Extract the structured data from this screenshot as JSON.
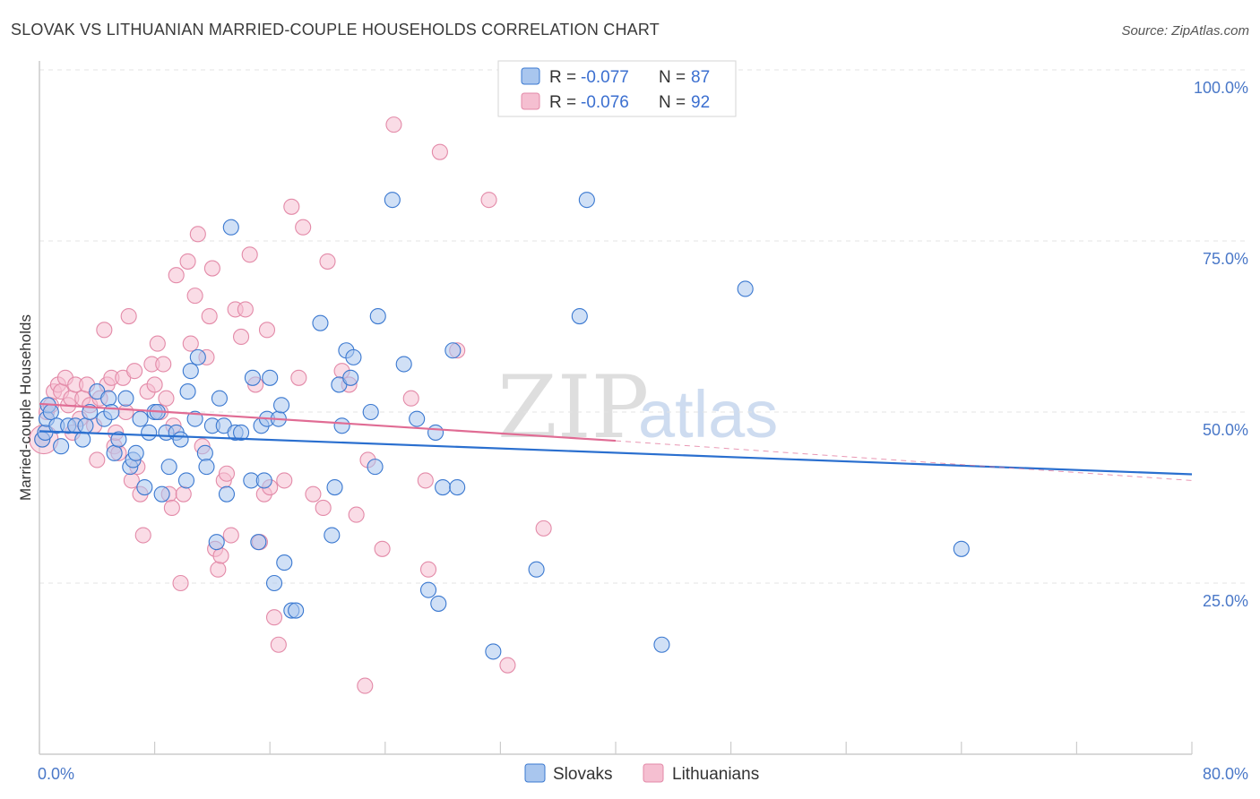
{
  "chart_data": {
    "type": "scatter",
    "title": "SLOVAK VS LITHUANIAN MARRIED-COUPLE HOUSEHOLDS CORRELATION CHART",
    "source": "Source: ZipAtlas.com",
    "ylabel": "Married-couple Households",
    "xlim": [
      0,
      80
    ],
    "ylim": [
      0,
      100
    ],
    "y_ticks": [
      {
        "value": 25,
        "label": "25.0%"
      },
      {
        "value": 50,
        "label": "50.0%"
      },
      {
        "value": 75,
        "label": "75.0%"
      },
      {
        "value": 100,
        "label": "100.0%"
      }
    ],
    "x_ticks": [
      {
        "value": 0,
        "label": "0.0%"
      },
      {
        "value": 80,
        "label": "80.0%"
      }
    ],
    "legend": {
      "r_label": "R = ",
      "n_label": "N = ",
      "entries": [
        {
          "name": "Slovaks",
          "r": "-0.077",
          "n": "87"
        },
        {
          "name": "Lithuanians",
          "r": "-0.076",
          "n": "92"
        }
      ]
    },
    "watermark": {
      "zip": "ZIP",
      "atlas": "atlas"
    },
    "colors": {
      "slovaks_fill": "#a9c6ee",
      "slovaks_stroke": "#3a78d0",
      "slovaks_line": "#2a6fcf",
      "lithuanians_fill": "#f5bfd1",
      "lithuanians_stroke": "#e38aa8",
      "lithuanians_line": "#e06c94",
      "grid": "#e3e3e3",
      "axis": "#cccccc"
    },
    "series": [
      {
        "name": "Slovaks",
        "trend": {
          "x": [
            0,
            80
          ],
          "y": [
            47.2,
            40.9
          ]
        },
        "points": [
          [
            0.2,
            46
          ],
          [
            0.4,
            47
          ],
          [
            0.5,
            49
          ],
          [
            0.6,
            51
          ],
          [
            0.8,
            50
          ],
          [
            1.2,
            48
          ],
          [
            1.5,
            45
          ],
          [
            2,
            48
          ],
          [
            2.5,
            48
          ],
          [
            3,
            46
          ],
          [
            3.2,
            48
          ],
          [
            3.5,
            50
          ],
          [
            4,
            53
          ],
          [
            4.5,
            49
          ],
          [
            4.8,
            52
          ],
          [
            5,
            50
          ],
          [
            5.2,
            44
          ],
          [
            5.5,
            46
          ],
          [
            6,
            52
          ],
          [
            6.3,
            42
          ],
          [
            6.5,
            43
          ],
          [
            6.7,
            44
          ],
          [
            7,
            49
          ],
          [
            7.3,
            39
          ],
          [
            7.6,
            47
          ],
          [
            8,
            50
          ],
          [
            8.2,
            50
          ],
          [
            8.5,
            38
          ],
          [
            8.8,
            47
          ],
          [
            9,
            42
          ],
          [
            9.5,
            47
          ],
          [
            9.8,
            46
          ],
          [
            10.2,
            40
          ],
          [
            10.3,
            53
          ],
          [
            10.5,
            56
          ],
          [
            10.8,
            49
          ],
          [
            11,
            58
          ],
          [
            11.5,
            44
          ],
          [
            11.6,
            42
          ],
          [
            12,
            48
          ],
          [
            12.3,
            31
          ],
          [
            12.5,
            52
          ],
          [
            12.8,
            48
          ],
          [
            13,
            38
          ],
          [
            13.3,
            77
          ],
          [
            13.6,
            47
          ],
          [
            14,
            47
          ],
          [
            14.7,
            40
          ],
          [
            14.8,
            55
          ],
          [
            15.2,
            31
          ],
          [
            15.4,
            48
          ],
          [
            15.6,
            40
          ],
          [
            15.8,
            49
          ],
          [
            16,
            55
          ],
          [
            16.3,
            25
          ],
          [
            16.6,
            49
          ],
          [
            16.8,
            51
          ],
          [
            17,
            28
          ],
          [
            17.5,
            21
          ],
          [
            17.8,
            21
          ],
          [
            19.5,
            63
          ],
          [
            20.3,
            32
          ],
          [
            20.5,
            39
          ],
          [
            20.8,
            54
          ],
          [
            21,
            48
          ],
          [
            21.3,
            59
          ],
          [
            21.6,
            55
          ],
          [
            21.8,
            58
          ],
          [
            23,
            50
          ],
          [
            23.3,
            42
          ],
          [
            23.5,
            64
          ],
          [
            24.5,
            81
          ],
          [
            25.3,
            57
          ],
          [
            26.2,
            49
          ],
          [
            27,
            24
          ],
          [
            27.5,
            47
          ],
          [
            27.7,
            22
          ],
          [
            28,
            39
          ],
          [
            28.7,
            59
          ],
          [
            29,
            39
          ],
          [
            31.5,
            15
          ],
          [
            34.5,
            27
          ],
          [
            37.5,
            64
          ],
          [
            38,
            81
          ],
          [
            43.2,
            16
          ],
          [
            49,
            68
          ],
          [
            64,
            30
          ]
        ]
      },
      {
        "name": "Lithuanians",
        "trend": {
          "x": [
            0,
            40
          ],
          "y": [
            51.2,
            45.8
          ],
          "dashed_to": {
            "x": 80,
            "y": 40.0
          }
        },
        "points": [
          [
            0.2,
            46
          ],
          [
            0.5,
            50
          ],
          [
            0.8,
            51
          ],
          [
            1,
            53
          ],
          [
            1.3,
            54
          ],
          [
            1.5,
            53
          ],
          [
            1.8,
            55
          ],
          [
            2,
            51
          ],
          [
            2.2,
            52
          ],
          [
            2.5,
            54
          ],
          [
            2.8,
            49
          ],
          [
            3,
            52
          ],
          [
            3.3,
            54
          ],
          [
            3.5,
            51
          ],
          [
            3.8,
            48
          ],
          [
            4,
            43
          ],
          [
            4.2,
            52
          ],
          [
            4.5,
            62
          ],
          [
            4.7,
            54
          ],
          [
            5,
            55
          ],
          [
            5.2,
            45
          ],
          [
            5.5,
            44
          ],
          [
            5.8,
            55
          ],
          [
            6,
            50
          ],
          [
            6.2,
            64
          ],
          [
            6.4,
            40
          ],
          [
            6.6,
            56
          ],
          [
            6.8,
            42
          ],
          [
            7,
            38
          ],
          [
            7.2,
            32
          ],
          [
            7.5,
            53
          ],
          [
            7.8,
            57
          ],
          [
            8,
            54
          ],
          [
            8.2,
            60
          ],
          [
            8.4,
            50
          ],
          [
            8.6,
            57
          ],
          [
            8.8,
            52
          ],
          [
            9,
            38
          ],
          [
            9.2,
            36
          ],
          [
            9.5,
            70
          ],
          [
            9.8,
            25
          ],
          [
            10,
            38
          ],
          [
            10.3,
            72
          ],
          [
            10.5,
            60
          ],
          [
            10.8,
            67
          ],
          [
            11,
            76
          ],
          [
            11.3,
            45
          ],
          [
            11.6,
            58
          ],
          [
            11.8,
            64
          ],
          [
            12,
            71
          ],
          [
            12.2,
            30
          ],
          [
            12.4,
            27
          ],
          [
            12.6,
            29
          ],
          [
            12.8,
            40
          ],
          [
            13,
            41
          ],
          [
            13.3,
            32
          ],
          [
            13.6,
            65
          ],
          [
            14,
            61
          ],
          [
            14.3,
            65
          ],
          [
            14.6,
            73
          ],
          [
            15,
            54
          ],
          [
            15.3,
            31
          ],
          [
            15.6,
            38
          ],
          [
            15.8,
            62
          ],
          [
            16,
            39
          ],
          [
            16.3,
            20
          ],
          [
            16.6,
            16
          ],
          [
            17,
            40
          ],
          [
            17.5,
            80
          ],
          [
            18,
            55
          ],
          [
            18.3,
            77
          ],
          [
            19,
            38
          ],
          [
            19.7,
            36
          ],
          [
            20,
            72
          ],
          [
            21,
            56
          ],
          [
            21.5,
            54
          ],
          [
            22,
            35
          ],
          [
            22.6,
            10
          ],
          [
            22.8,
            43
          ],
          [
            23.8,
            30
          ],
          [
            24.6,
            92
          ],
          [
            25.8,
            52
          ],
          [
            26.8,
            40
          ],
          [
            27,
            27
          ],
          [
            27.8,
            88
          ],
          [
            29,
            59
          ],
          [
            31.2,
            81
          ],
          [
            32.5,
            13
          ],
          [
            35,
            33
          ],
          [
            2.3,
            47
          ],
          [
            5.3,
            47
          ],
          [
            9.3,
            48
          ]
        ]
      }
    ]
  }
}
